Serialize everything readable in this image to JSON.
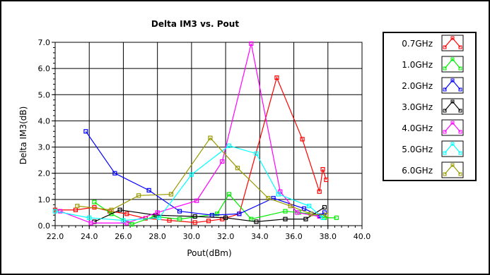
{
  "chart_data": {
    "type": "line",
    "title": "Delta IM3 vs. Pout",
    "xlabel": "Pout(dBm)",
    "ylabel": "Delta IM3(dB)",
    "xlim": [
      22.0,
      40.0
    ],
    "ylim": [
      0.0,
      7.0
    ],
    "x_ticks": [
      "22.0",
      "24.0",
      "26.0",
      "28.0",
      "30.0",
      "32.0",
      "34.0",
      "36.0",
      "38.0",
      "40.0"
    ],
    "y_ticks": [
      "0.0",
      "1.0",
      "2.0",
      "3.0",
      "4.0",
      "5.0",
      "6.0",
      "7.0"
    ],
    "grid": true,
    "legend_position": "right",
    "series": [
      {
        "name": "0.7GHz",
        "color": "#ff0000",
        "points": [
          [
            22.0,
            0.6
          ],
          [
            23.2,
            0.6
          ],
          [
            24.3,
            0.7
          ],
          [
            25.2,
            0.55
          ],
          [
            26.2,
            0.45
          ],
          [
            27.3,
            0.28
          ],
          [
            28.7,
            0.2
          ],
          [
            30.2,
            0.12
          ],
          [
            31.0,
            0.18
          ],
          [
            31.8,
            0.25
          ],
          [
            32.8,
            0.45
          ],
          [
            35.0,
            5.65
          ],
          [
            36.5,
            3.3
          ],
          [
            37.5,
            1.3
          ],
          [
            37.7,
            2.15
          ],
          [
            37.9,
            1.75
          ]
        ]
      },
      {
        "name": "1.0GHz",
        "color": "#00ee00",
        "points": [
          [
            24.3,
            0.9
          ],
          [
            25.3,
            0.45
          ],
          [
            26.5,
            0.05
          ],
          [
            27.8,
            0.35
          ],
          [
            29.3,
            0.25
          ],
          [
            31.5,
            0.45
          ],
          [
            32.2,
            1.2
          ],
          [
            33.5,
            0.25
          ],
          [
            35.5,
            0.55
          ],
          [
            36.3,
            0.5
          ],
          [
            37.0,
            0.45
          ],
          [
            37.8,
            0.3
          ],
          [
            38.5,
            0.3
          ]
        ]
      },
      {
        "name": "2.0GHz",
        "color": "#0000ff",
        "points": [
          [
            23.8,
            3.6
          ],
          [
            25.5,
            2.0
          ],
          [
            27.5,
            1.35
          ],
          [
            29.3,
            0.55
          ],
          [
            31.2,
            0.4
          ],
          [
            32.8,
            0.45
          ],
          [
            34.8,
            1.05
          ],
          [
            36.6,
            0.65
          ],
          [
            37.5,
            0.38
          ],
          [
            37.8,
            0.5
          ]
        ]
      },
      {
        "name": "3.0GHz",
        "color": "#000000",
        "points": [
          [
            24.3,
            0.15
          ],
          [
            25.8,
            0.6
          ],
          [
            27.9,
            0.4
          ],
          [
            30.2,
            0.35
          ],
          [
            32.0,
            0.3
          ],
          [
            33.8,
            0.15
          ],
          [
            35.5,
            0.25
          ],
          [
            36.7,
            0.25
          ],
          [
            37.8,
            0.7
          ]
        ]
      },
      {
        "name": "4.0GHz",
        "color": "#ff00ff",
        "points": [
          [
            22.3,
            0.55
          ],
          [
            24.1,
            0.1
          ],
          [
            26.2,
            0.1
          ],
          [
            28.0,
            0.5
          ],
          [
            30.3,
            0.95
          ],
          [
            31.8,
            2.45
          ],
          [
            33.5,
            6.95
          ],
          [
            35.2,
            1.3
          ],
          [
            36.2,
            0.5
          ],
          [
            37.5,
            0.35
          ]
        ]
      },
      {
        "name": "5.0GHz",
        "color": "#00ffff",
        "points": [
          [
            22.0,
            0.55
          ],
          [
            24.0,
            0.3
          ],
          [
            26.0,
            0.2
          ],
          [
            28.1,
            0.3
          ],
          [
            30.0,
            1.95
          ],
          [
            32.2,
            3.05
          ],
          [
            33.8,
            2.75
          ],
          [
            35.1,
            1.2
          ],
          [
            36.9,
            0.75
          ],
          [
            37.7,
            0.3
          ]
        ]
      },
      {
        "name": "6.0GHz",
        "color": "#999900",
        "points": [
          [
            23.3,
            0.75
          ],
          [
            25.3,
            0.6
          ],
          [
            26.9,
            1.15
          ],
          [
            28.8,
            1.2
          ],
          [
            31.1,
            3.35
          ],
          [
            32.7,
            2.2
          ],
          [
            34.5,
            1.05
          ],
          [
            35.8,
            0.75
          ],
          [
            37.0,
            0.45
          ],
          [
            37.9,
            0.4
          ]
        ]
      }
    ]
  }
}
